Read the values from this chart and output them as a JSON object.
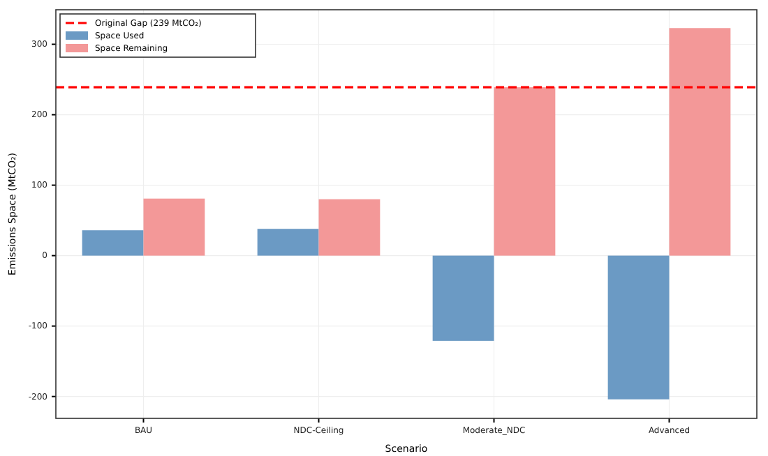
{
  "chart_data": {
    "type": "bar",
    "categories": [
      "BAU",
      "NDC-Ceiling",
      "Moderate_NDC",
      "Advanced"
    ],
    "series": [
      {
        "name": "Space Used",
        "color": "#6b9ac4",
        "values": [
          36,
          38,
          -121,
          -204
        ]
      },
      {
        "name": "Space Remaining",
        "color": "#f39898",
        "values": [
          81,
          80,
          239,
          323
        ]
      }
    ],
    "xlabel": "Scenario",
    "ylabel": "Emissions Space (MtCO₂)",
    "ylim": [
      -231,
      349
    ],
    "yticks": [
      -200,
      -100,
      0,
      100,
      200,
      300
    ],
    "ref_lines": [
      {
        "axis": "y",
        "value": 239,
        "label": "Original Gap (239 MtCO₂)",
        "color": "#ff0000",
        "line_style": "dashed"
      }
    ],
    "grid": true,
    "legend": "top left"
  }
}
